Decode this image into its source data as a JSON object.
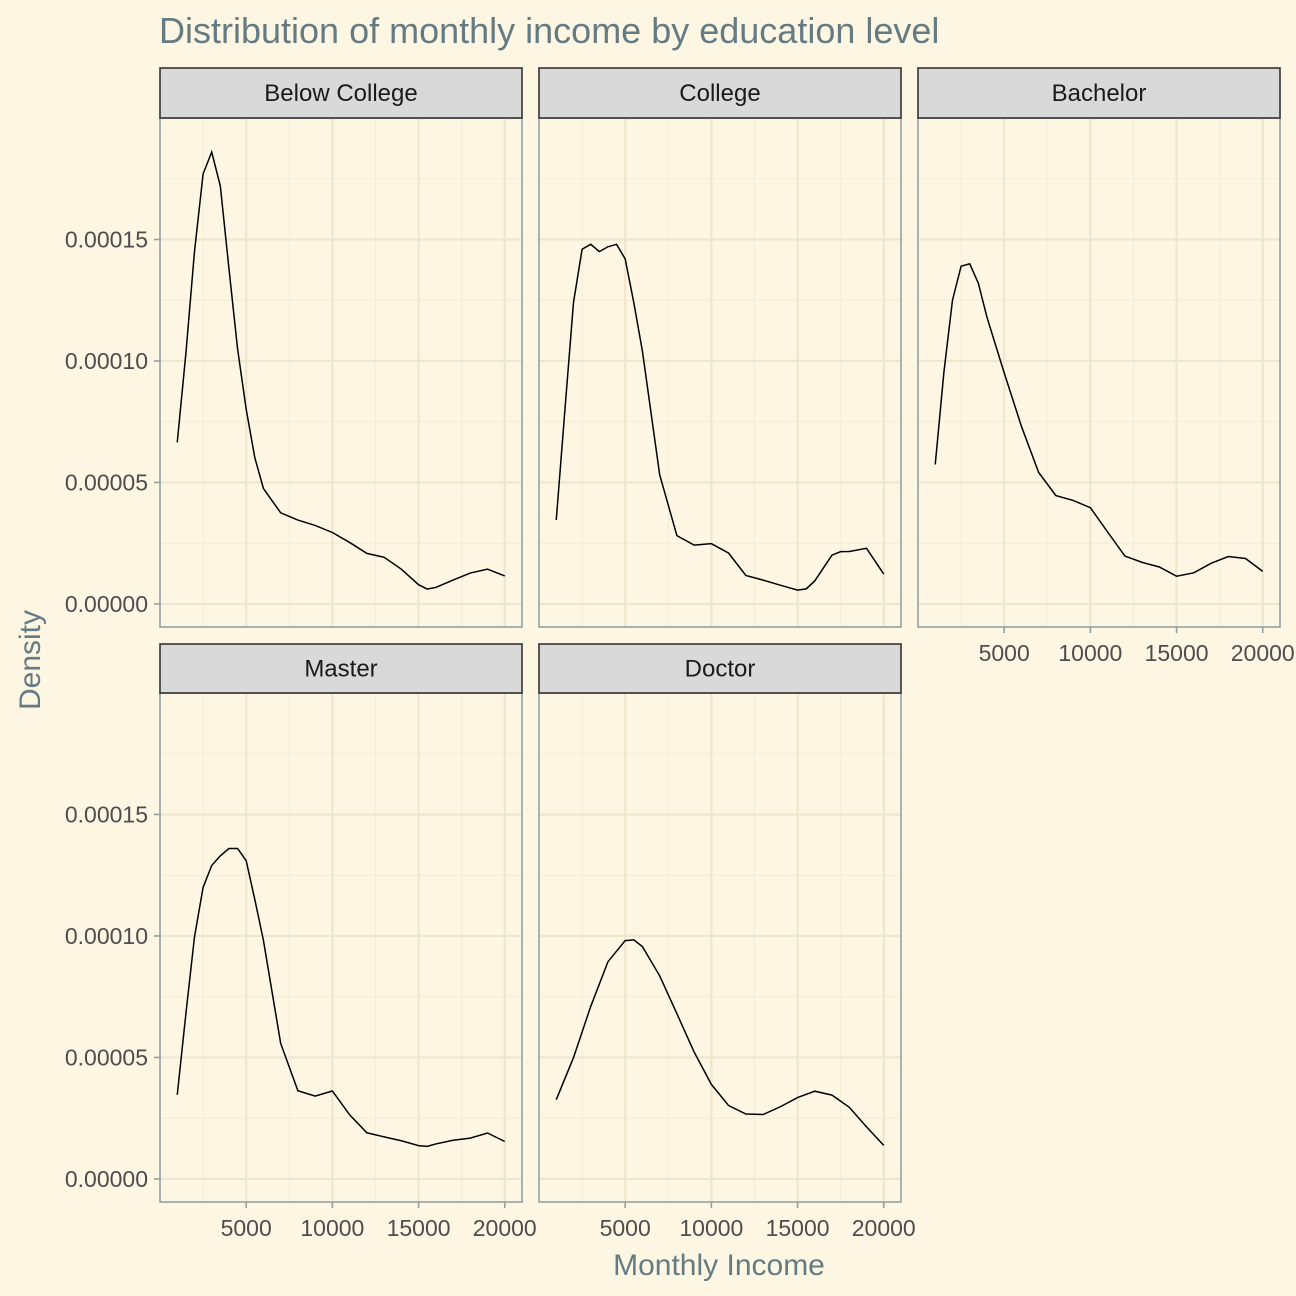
{
  "chart_data": {
    "type": "line",
    "title": "Distribution of monthly income by education level",
    "xlabel": "Monthly Income",
    "ylabel": "Density",
    "xlim": [
      0,
      21000
    ],
    "ylim": [
      -9.5e-06,
      0.0002
    ],
    "x_ticks": [
      5000,
      10000,
      15000,
      20000
    ],
    "x_tick_labels": [
      "5000",
      "10000",
      "15000",
      "20000"
    ],
    "y_ticks": [
      0,
      5e-05,
      0.0001,
      0.00015
    ],
    "y_tick_labels": [
      "0.00000",
      "0.00005",
      "0.00010",
      "0.00015"
    ],
    "x_minor": [
      2500,
      7500,
      12500,
      17500
    ],
    "y_minor": [
      2.5e-05,
      7.5e-05,
      0.000125,
      0.000175
    ],
    "layout": "facet_wrap 3 columns",
    "facets": [
      {
        "name": "Below College",
        "x": [
          1000,
          1500,
          2000,
          2500,
          3000,
          3500,
          4000,
          4500,
          5000,
          5500,
          6000,
          7000,
          8000,
          9000,
          10000,
          11000,
          12000,
          13000,
          14000,
          15000,
          15500,
          16000,
          17000,
          18000,
          19000,
          20000
        ],
        "y": [
          6.65e-05,
          0.000103,
          0.000145,
          0.000177,
          0.000186,
          0.000172,
          0.000138,
          0.000105,
          8.01e-05,
          6.02e-05,
          4.75e-05,
          3.75e-05,
          3.45e-05,
          3.23e-05,
          2.94e-05,
          2.53e-05,
          2.08e-05,
          1.92e-05,
          1.43e-05,
          7.9e-06,
          6.1e-06,
          6.8e-06,
          9.8e-06,
          1.27e-05,
          1.43e-05,
          1.15e-05
        ]
      },
      {
        "name": "College",
        "x": [
          1000,
          1500,
          2000,
          2500,
          3000,
          3500,
          4000,
          4500,
          5000,
          5500,
          6000,
          7000,
          8000,
          9000,
          10000,
          11000,
          12000,
          13000,
          14000,
          15000,
          15500,
          16000,
          16500,
          17000,
          17500,
          18000,
          19000,
          20000
        ],
        "y": [
          3.45e-05,
          7.96e-05,
          0.000124,
          0.000146,
          0.000148,
          0.000145,
          0.000147,
          0.000148,
          0.000142,
          0.000124,
          0.000104,
          5.32e-05,
          2.81e-05,
          2.42e-05,
          2.48e-05,
          2.09e-05,
          1.17e-05,
          9.8e-06,
          7.7e-06,
          5.7e-06,
          6.2e-06,
          9.5e-06,
          1.48e-05,
          2.01e-05,
          2.15e-05,
          2.16e-05,
          2.29e-05,
          1.23e-05
        ]
      },
      {
        "name": "Bachelor",
        "x": [
          1000,
          1500,
          2000,
          2500,
          3000,
          3500,
          4000,
          5000,
          6000,
          7000,
          8000,
          9000,
          10000,
          11000,
          12000,
          13000,
          14000,
          15000,
          16000,
          17000,
          18000,
          19000,
          20000
        ],
        "y": [
          5.74e-05,
          9.52e-05,
          0.000125,
          0.000139,
          0.00014,
          0.000132,
          0.000118,
          9.51e-05,
          7.31e-05,
          5.41e-05,
          4.46e-05,
          4.26e-05,
          3.96e-05,
          2.96e-05,
          1.97e-05,
          1.71e-05,
          1.52e-05,
          1.14e-05,
          1.28e-05,
          1.67e-05,
          1.95e-05,
          1.87e-05,
          1.34e-05
        ]
      },
      {
        "name": "Master",
        "x": [
          1000,
          1500,
          2000,
          2500,
          3000,
          3500,
          4000,
          4500,
          5000,
          5500,
          6000,
          7000,
          8000,
          9000,
          10000,
          11000,
          12000,
          13000,
          14000,
          15000,
          15500,
          16000,
          17000,
          18000,
          19000,
          20000
        ],
        "y": [
          3.46e-05,
          6.79e-05,
          9.96e-05,
          0.00012,
          0.000129,
          0.000133,
          0.000136,
          0.000136,
          0.000131,
          0.000115,
          9.82e-05,
          5.58e-05,
          3.63e-05,
          3.41e-05,
          3.62e-05,
          2.64e-05,
          1.9e-05,
          1.73e-05,
          1.57e-05,
          1.37e-05,
          1.34e-05,
          1.44e-05,
          1.59e-05,
          1.68e-05,
          1.89e-05,
          1.54e-05
        ]
      },
      {
        "name": "Doctor",
        "x": [
          1000,
          2000,
          3000,
          4000,
          5000,
          5500,
          6000,
          7000,
          8000,
          9000,
          10000,
          11000,
          12000,
          13000,
          14000,
          15000,
          16000,
          17000,
          18000,
          19000,
          20000
        ],
        "y": [
          3.26e-05,
          4.99e-05,
          7.1e-05,
          8.94e-05,
          9.81e-05,
          9.84e-05,
          9.56e-05,
          8.36e-05,
          6.8e-05,
          5.22e-05,
          3.89e-05,
          3.02e-05,
          2.67e-05,
          2.65e-05,
          2.97e-05,
          3.35e-05,
          3.61e-05,
          3.45e-05,
          2.95e-05,
          2.14e-05,
          1.38e-05
        ]
      }
    ]
  }
}
